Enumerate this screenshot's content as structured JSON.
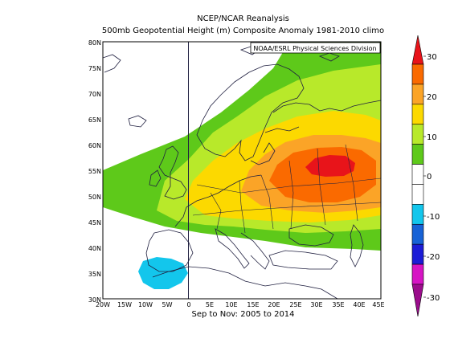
{
  "title_line1": "NCEP/NCAR Reanalysis",
  "title_line2": "500mb Geopotential Height (m) Composite Anomaly 1981-2010 climo",
  "credit": "NOAA/ESRL Physical Sciences Division",
  "footer": "Sep to Nov: 2005 to 2014",
  "lat_labels": [
    "80N",
    "75N",
    "70N",
    "65N",
    "60N",
    "55N",
    "50N",
    "45N",
    "40N",
    "35N",
    "30N"
  ],
  "lon_labels": [
    "20W",
    "15W",
    "10W",
    "5W",
    "0",
    "5E",
    "10E",
    "15E",
    "20E",
    "25E",
    "30E",
    "35E",
    "40E",
    "45E"
  ],
  "colorbar": {
    "labels": [
      "30",
      "20",
      "10",
      "0",
      "-10",
      "-20",
      "-30"
    ],
    "colors": [
      "#e8141a",
      "#fa6a00",
      "#fba427",
      "#fcd900",
      "#b8e92a",
      "#5ec91a",
      "#ffffff",
      "#ffffff",
      "#13c6ec",
      "#1762d6",
      "#1c1cd6",
      "#d614c4",
      "#9b0c8c"
    ]
  },
  "map_colors": {
    "green": "#5ec91a",
    "lime": "#b8e92a",
    "yellow": "#fcd900",
    "light_orange": "#fba427",
    "orange": "#fa6a00",
    "red": "#e8141a",
    "cyan": "#13c6ec"
  }
}
